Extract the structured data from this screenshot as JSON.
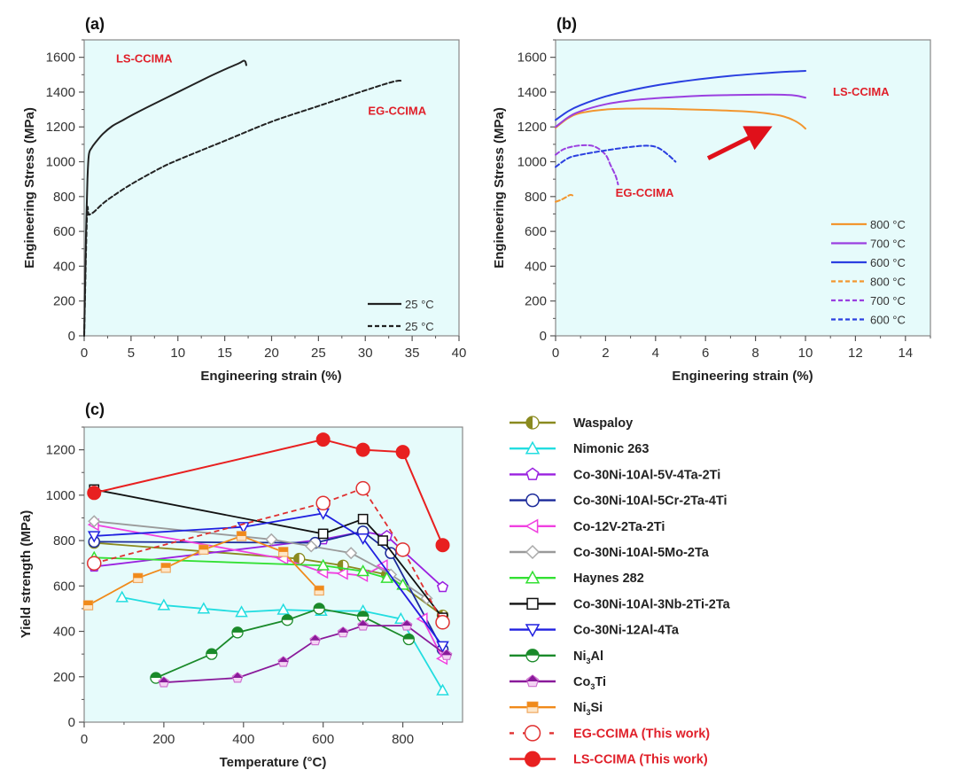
{
  "figure": {
    "panels": [
      "(a)",
      "(b)",
      "(c)"
    ]
  },
  "chart_data": [
    {
      "id": "a",
      "type": "line",
      "panel_label": "(a)",
      "xlabel": "Engineering strain (%)",
      "ylabel": "Engineering Stress (MPa)",
      "xlim": [
        0,
        40
      ],
      "ylim": [
        0,
        1700
      ],
      "xticks": [
        0,
        5,
        10,
        15,
        20,
        25,
        30,
        35,
        40
      ],
      "yticks": [
        0,
        200,
        400,
        600,
        800,
        1000,
        1200,
        1400,
        1600
      ],
      "grid": false,
      "legend_position": "bottom-right",
      "annotations": [
        {
          "text": "LS-CCIMA",
          "x": 3.4,
          "y": 1570,
          "color": "#e0202a"
        },
        {
          "text": "EG-CCIMA",
          "x": 30.3,
          "y": 1270,
          "color": "#e0202a"
        }
      ],
      "series": [
        {
          "name": "25 °C",
          "group": "LS-CCIMA",
          "color": "#222222",
          "dash": "solid",
          "x": [
            0,
            0.2,
            0.35,
            0.5,
            0.8,
            1.2,
            2,
            3,
            4,
            5,
            7,
            10,
            13,
            15,
            16.5,
            17.0,
            17.2,
            17.3
          ],
          "y": [
            0,
            600,
            900,
            1040,
            1080,
            1110,
            1160,
            1205,
            1235,
            1265,
            1320,
            1400,
            1480,
            1530,
            1565,
            1580,
            1575,
            1555
          ]
        },
        {
          "name": "25 °C",
          "group": "EG-CCIMA",
          "color": "#222222",
          "dash": "dashed",
          "x": [
            0,
            0.3,
            0.5,
            1,
            2,
            3,
            5,
            8,
            10,
            15,
            20,
            25,
            30,
            33,
            34
          ],
          "y": [
            0,
            690,
            695,
            710,
            760,
            800,
            870,
            960,
            1010,
            1120,
            1230,
            1320,
            1410,
            1460,
            1465
          ]
        }
      ]
    },
    {
      "id": "b",
      "type": "line",
      "panel_label": "(b)",
      "xlabel": "Engineering strain (%)",
      "ylabel": "Engineering Stress (MPa)",
      "xlim": [
        0,
        15
      ],
      "ylim": [
        0,
        1700
      ],
      "xticks": [
        0,
        2,
        4,
        6,
        8,
        10,
        12,
        14
      ],
      "yticks": [
        0,
        200,
        400,
        600,
        800,
        1000,
        1200,
        1400,
        1600
      ],
      "grid": false,
      "legend_position": "bottom-right",
      "annotations": [
        {
          "text": "LS-CCIMA",
          "x": 11.1,
          "y": 1380,
          "color": "#e0202a"
        },
        {
          "text": "EG-CCIMA",
          "x": 2.4,
          "y": 800,
          "color": "#e0202a"
        },
        {
          "text": "arrow",
          "x_from": 6.1,
          "y_from": 1020,
          "x_to": 8.2,
          "y_to": 1170,
          "color": "#e0101a"
        }
      ],
      "series": [
        {
          "name": "800 °C",
          "group": "LS-CCIMA",
          "color": "#f2962f",
          "dash": "solid",
          "x": [
            0,
            0.5,
            1,
            2,
            3,
            4,
            5,
            6,
            7,
            8,
            9,
            9.5,
            9.8,
            10.0
          ],
          "y": [
            1195,
            1250,
            1280,
            1300,
            1305,
            1305,
            1302,
            1298,
            1293,
            1285,
            1265,
            1240,
            1215,
            1190
          ]
        },
        {
          "name": "700 °C",
          "group": "LS-CCIMA",
          "color": "#9a3fe0",
          "dash": "solid",
          "x": [
            0,
            0.5,
            1,
            2,
            3,
            4,
            5,
            6,
            7,
            8,
            9,
            9.6,
            10.0
          ],
          "y": [
            1200,
            1255,
            1290,
            1330,
            1352,
            1365,
            1373,
            1380,
            1383,
            1385,
            1385,
            1380,
            1368
          ]
        },
        {
          "name": "600 °C",
          "group": "LS-CCIMA",
          "color": "#2a3fe0",
          "dash": "solid",
          "x": [
            0,
            0.5,
            1,
            2,
            3,
            4,
            5,
            6,
            7,
            8,
            9,
            10.0
          ],
          "y": [
            1240,
            1290,
            1325,
            1375,
            1410,
            1438,
            1460,
            1478,
            1493,
            1505,
            1515,
            1522
          ]
        },
        {
          "name": "800 °C",
          "group": "EG-CCIMA",
          "color": "#f2962f",
          "dash": "dashed",
          "x": [
            0,
            0.2,
            0.4,
            0.6,
            0.75
          ],
          "y": [
            770,
            780,
            795,
            810,
            800
          ]
        },
        {
          "name": "700 °C",
          "group": "EG-CCIMA",
          "color": "#9a3fe0",
          "dash": "dashed",
          "x": [
            0,
            0.3,
            0.7,
            1.2,
            1.6,
            2.0,
            2.2,
            2.4,
            2.5
          ],
          "y": [
            1040,
            1070,
            1088,
            1095,
            1085,
            1040,
            980,
            920,
            870
          ]
        },
        {
          "name": "600 °C",
          "group": "EG-CCIMA",
          "color": "#2a3fe0",
          "dash": "dashed",
          "x": [
            0,
            0.5,
            1,
            2,
            3,
            3.7,
            4.1,
            4.5,
            4.8
          ],
          "y": [
            970,
            1020,
            1040,
            1065,
            1085,
            1092,
            1080,
            1040,
            1000
          ]
        }
      ]
    },
    {
      "id": "c",
      "type": "line",
      "panel_label": "(c)",
      "xlabel": "Temperature (°C)",
      "ylabel": "Yield strength (MPa)",
      "xlim": [
        0,
        950
      ],
      "ylim": [
        0,
        1300
      ],
      "xticks": [
        0,
        200,
        400,
        600,
        800
      ],
      "yticks": [
        0,
        200,
        400,
        600,
        800,
        1000,
        1200
      ],
      "grid": false,
      "legend_position": "outside-right",
      "series": [
        {
          "name": "Waspaloy",
          "sub": "",
          "color": "#8a8a1f",
          "marker": "half-circle-left",
          "dash": "solid",
          "x": [
            25,
            540,
            650,
            760,
            900
          ],
          "y": [
            790,
            720,
            690,
            650,
            470
          ]
        },
        {
          "name": "Nimonic 263",
          "sub": "",
          "color": "#22dde0",
          "marker": "triangle-up",
          "dash": "solid",
          "x": [
            95,
            200,
            300,
            395,
            500,
            595,
            700,
            795,
            900
          ],
          "y": [
            550,
            515,
            500,
            485,
            495,
            490,
            490,
            455,
            140
          ]
        },
        {
          "name": "Co-30Ni-10Al-5V-4Ta-2Ti",
          "sub": "",
          "color": "#9a20e0",
          "marker": "pentagon",
          "dash": "solid",
          "x": [
            25,
            600,
            700,
            760,
            900
          ],
          "y": [
            685,
            805,
            840,
            820,
            595
          ]
        },
        {
          "name": "Co-30Ni-10Al-5Cr-2Ta-4Ti",
          "sub": "",
          "color": "#1c2a9a",
          "marker": "circle-open",
          "dash": "solid",
          "x": [
            25,
            580,
            700,
            770,
            900
          ],
          "y": [
            795,
            790,
            840,
            745,
            320
          ]
        },
        {
          "name": "Co-12V-2Ta-2Ti",
          "sub": "",
          "color": "#f040e0",
          "marker": "triangle-left",
          "dash": "solid",
          "x": [
            25,
            500,
            600,
            650,
            700,
            750,
            850,
            900
          ],
          "y": [
            870,
            720,
            660,
            655,
            645,
            690,
            455,
            280
          ]
        },
        {
          "name": "Co-30Ni-10Al-5Mo-2Ta",
          "sub": "",
          "color": "#9a9a9a",
          "marker": "diamond-open",
          "dash": "solid",
          "x": [
            25,
            470,
            570,
            670,
            770,
            860
          ],
          "y": [
            885,
            805,
            775,
            745,
            650,
            545
          ]
        },
        {
          "name": "Haynes 282",
          "sub": "",
          "color": "#33e033",
          "marker": "triangle-up",
          "dash": "solid",
          "x": [
            25,
            600,
            700,
            760,
            800
          ],
          "y": [
            725,
            690,
            665,
            635,
            605
          ]
        },
        {
          "name": "Co-30Ni-10Al-3Nb-2Ti-2Ta",
          "sub": "",
          "color": "#111111",
          "marker": "square-open",
          "dash": "solid",
          "x": [
            25,
            600,
            700,
            750,
            900
          ],
          "y": [
            1025,
            830,
            895,
            800,
            460
          ]
        },
        {
          "name": "Co-30Ni-12Al-4Ta",
          "sub": "",
          "color": "#2020e0",
          "marker": "triangle-down",
          "dash": "solid",
          "x": [
            25,
            400,
            600,
            700,
            900
          ],
          "y": [
            820,
            860,
            920,
            810,
            335
          ]
        },
        {
          "name": "Ni",
          "sub": "3",
          "suffix": "Al",
          "color": "#1a8a2a",
          "marker": "half-circle-top",
          "dash": "solid",
          "x": [
            180,
            320,
            385,
            510,
            590,
            700,
            815
          ],
          "y": [
            195,
            300,
            395,
            450,
            500,
            465,
            365
          ]
        },
        {
          "name": "Co",
          "sub": "3",
          "suffix": "Ti",
          "color": "#8a1a9a",
          "marker": "half-pentagon-top",
          "dash": "solid",
          "x": [
            200,
            385,
            500,
            580,
            650,
            700,
            810,
            910
          ],
          "y": [
            175,
            195,
            265,
            360,
            395,
            425,
            425,
            295
          ]
        },
        {
          "name": "Ni",
          "sub": "3",
          "suffix": "Si",
          "color": "#f08a1a",
          "marker": "half-square-top",
          "dash": "solid",
          "x": [
            10,
            135,
            205,
            300,
            395,
            500,
            590
          ],
          "y": [
            515,
            635,
            680,
            760,
            820,
            750,
            580
          ]
        },
        {
          "name": "EG-CCIMA (This work)",
          "sub": "",
          "color": "#e03030",
          "marker": "circle-open-red",
          "dash": "dashed",
          "x": [
            25,
            600,
            700,
            800,
            900
          ],
          "y": [
            700,
            965,
            1030,
            760,
            440
          ]
        },
        {
          "name": "LS-CCIMA (This work)",
          "sub": "",
          "color": "#e82020",
          "marker": "circle-filled",
          "dash": "solid",
          "x": [
            25,
            600,
            700,
            800,
            900
          ],
          "y": [
            1010,
            1245,
            1200,
            1190,
            780
          ]
        }
      ]
    }
  ]
}
